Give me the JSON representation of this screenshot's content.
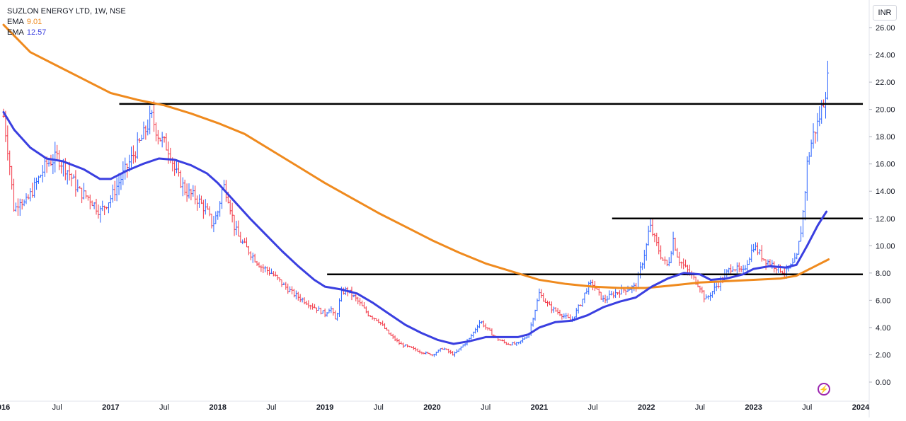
{
  "legend": {
    "symbol": "SUZLON ENERGY LTD, 1W, NSE",
    "ema_long_label": "EMA",
    "ema_long_value": "9.01",
    "ema_short_label": "EMA",
    "ema_short_value": "12.57"
  },
  "currency": "INR",
  "flash_icon_glyph": "⚡",
  "chart_data": {
    "type": "line",
    "title": "SUZLON ENERGY LTD, 1W, NSE",
    "ylim": [
      -0.6,
      26.4
    ],
    "xlim": [
      2016.0,
      2024.1
    ],
    "y_ticks": [
      "26.00",
      "24.00",
      "22.00",
      "20.00",
      "18.00",
      "16.00",
      "14.00",
      "12.00",
      "10.00",
      "8.00",
      "6.00",
      "4.00",
      "2.00",
      "0.00"
    ],
    "x_ticks": [
      {
        "t": 2016.0,
        "label": "016"
      },
      {
        "t": 2016.5,
        "label": "Jul"
      },
      {
        "t": 2017.0,
        "label": "2017"
      },
      {
        "t": 2017.5,
        "label": "Jul"
      },
      {
        "t": 2018.0,
        "label": "2018"
      },
      {
        "t": 2018.5,
        "label": "Jul"
      },
      {
        "t": 2019.0,
        "label": "2019"
      },
      {
        "t": 2019.5,
        "label": "Jul"
      },
      {
        "t": 2020.0,
        "label": "2020"
      },
      {
        "t": 2020.5,
        "label": "Jul"
      },
      {
        "t": 2021.0,
        "label": "2021"
      },
      {
        "t": 2021.5,
        "label": "Jul"
      },
      {
        "t": 2022.0,
        "label": "2022"
      },
      {
        "t": 2022.5,
        "label": "Jul"
      },
      {
        "t": 2023.0,
        "label": "2023"
      },
      {
        "t": 2023.5,
        "label": "Jul"
      },
      {
        "t": 2024.0,
        "label": "2024"
      }
    ],
    "price_path": [
      [
        2016.0,
        19.5
      ],
      [
        2016.05,
        16.5
      ],
      [
        2016.1,
        12.5
      ],
      [
        2016.15,
        13.5
      ],
      [
        2016.2,
        13.0
      ],
      [
        2016.3,
        14.5
      ],
      [
        2016.4,
        16.0
      ],
      [
        2016.5,
        16.5
      ],
      [
        2016.6,
        15.5
      ],
      [
        2016.7,
        14.0
      ],
      [
        2016.8,
        13.5
      ],
      [
        2016.9,
        12.5
      ],
      [
        2017.0,
        13.5
      ],
      [
        2017.1,
        15.0
      ],
      [
        2017.2,
        16.5
      ],
      [
        2017.3,
        18.0
      ],
      [
        2017.38,
        19.5
      ],
      [
        2017.45,
        18.0
      ],
      [
        2017.55,
        17.0
      ],
      [
        2017.6,
        15.5
      ],
      [
        2017.7,
        14.0
      ],
      [
        2017.8,
        13.5
      ],
      [
        2017.9,
        12.5
      ],
      [
        2017.95,
        11.5
      ],
      [
        2018.0,
        12.5
      ],
      [
        2018.05,
        14.5
      ],
      [
        2018.1,
        13.5
      ],
      [
        2018.15,
        11.5
      ],
      [
        2018.2,
        10.5
      ],
      [
        2018.3,
        9.5
      ],
      [
        2018.4,
        8.5
      ],
      [
        2018.5,
        8.0
      ],
      [
        2018.6,
        7.2
      ],
      [
        2018.7,
        6.5
      ],
      [
        2018.8,
        6.0
      ],
      [
        2018.9,
        5.5
      ],
      [
        2019.0,
        5.0
      ],
      [
        2019.05,
        5.5
      ],
      [
        2019.1,
        4.5
      ],
      [
        2019.15,
        6.5
      ],
      [
        2019.2,
        6.8
      ],
      [
        2019.3,
        6.0
      ],
      [
        2019.4,
        5.0
      ],
      [
        2019.5,
        4.5
      ],
      [
        2019.6,
        3.5
      ],
      [
        2019.7,
        2.8
      ],
      [
        2019.8,
        2.5
      ],
      [
        2019.9,
        2.2
      ],
      [
        2020.0,
        2.0
      ],
      [
        2020.1,
        2.5
      ],
      [
        2020.2,
        2.0
      ],
      [
        2020.3,
        2.8
      ],
      [
        2020.35,
        3.2
      ],
      [
        2020.45,
        4.5
      ],
      [
        2020.5,
        4.0
      ],
      [
        2020.6,
        3.2
      ],
      [
        2020.7,
        2.8
      ],
      [
        2020.8,
        2.8
      ],
      [
        2020.9,
        3.5
      ],
      [
        2021.0,
        6.5
      ],
      [
        2021.05,
        6.0
      ],
      [
        2021.1,
        5.5
      ],
      [
        2021.2,
        5.0
      ],
      [
        2021.3,
        4.5
      ],
      [
        2021.4,
        6.0
      ],
      [
        2021.45,
        7.0
      ],
      [
        2021.5,
        7.2
      ],
      [
        2021.55,
        6.5
      ],
      [
        2021.6,
        6.0
      ],
      [
        2021.7,
        6.5
      ],
      [
        2021.8,
        6.8
      ],
      [
        2021.9,
        7.0
      ],
      [
        2022.0,
        10.0
      ],
      [
        2022.03,
        11.5
      ],
      [
        2022.1,
        10.0
      ],
      [
        2022.15,
        9.0
      ],
      [
        2022.2,
        8.5
      ],
      [
        2022.25,
        10.5
      ],
      [
        2022.3,
        9.0
      ],
      [
        2022.4,
        8.0
      ],
      [
        2022.5,
        7.0
      ],
      [
        2022.55,
        6.0
      ],
      [
        2022.6,
        6.5
      ],
      [
        2022.7,
        7.5
      ],
      [
        2022.8,
        8.5
      ],
      [
        2022.9,
        8.0
      ],
      [
        2023.0,
        10.0
      ],
      [
        2023.05,
        9.5
      ],
      [
        2023.1,
        9.0
      ],
      [
        2023.2,
        8.5
      ],
      [
        2023.3,
        8.0
      ],
      [
        2023.35,
        8.5
      ],
      [
        2023.4,
        9.0
      ],
      [
        2023.45,
        11.5
      ],
      [
        2023.48,
        14.0
      ],
      [
        2023.5,
        16.0
      ],
      [
        2023.55,
        18.0
      ],
      [
        2023.6,
        19.0
      ],
      [
        2023.65,
        20.5
      ],
      [
        2023.7,
        22.5
      ]
    ],
    "series": [
      {
        "name": "EMA 9.01",
        "color": "#ef8a1e",
        "points": [
          [
            2016.0,
            26.2
          ],
          [
            2016.25,
            24.2
          ],
          [
            2016.5,
            23.2
          ],
          [
            2016.75,
            22.2
          ],
          [
            2017.0,
            21.2
          ],
          [
            2017.25,
            20.7
          ],
          [
            2017.5,
            20.3
          ],
          [
            2017.75,
            19.7
          ],
          [
            2018.0,
            19.0
          ],
          [
            2018.25,
            18.2
          ],
          [
            2018.5,
            17.0
          ],
          [
            2018.75,
            15.8
          ],
          [
            2019.0,
            14.6
          ],
          [
            2019.25,
            13.5
          ],
          [
            2019.5,
            12.4
          ],
          [
            2019.75,
            11.4
          ],
          [
            2020.0,
            10.4
          ],
          [
            2020.25,
            9.5
          ],
          [
            2020.5,
            8.7
          ],
          [
            2020.75,
            8.1
          ],
          [
            2021.0,
            7.5
          ],
          [
            2021.25,
            7.2
          ],
          [
            2021.5,
            7.0
          ],
          [
            2021.75,
            6.9
          ],
          [
            2022.0,
            6.9
          ],
          [
            2022.25,
            7.1
          ],
          [
            2022.5,
            7.3
          ],
          [
            2022.75,
            7.4
          ],
          [
            2023.0,
            7.5
          ],
          [
            2023.25,
            7.6
          ],
          [
            2023.4,
            7.8
          ],
          [
            2023.5,
            8.2
          ],
          [
            2023.6,
            8.6
          ],
          [
            2023.7,
            9.0
          ]
        ]
      },
      {
        "name": "EMA 12.57",
        "color": "#3a3fe0",
        "points": [
          [
            2016.0,
            19.8
          ],
          [
            2016.1,
            18.5
          ],
          [
            2016.25,
            17.2
          ],
          [
            2016.4,
            16.4
          ],
          [
            2016.55,
            16.2
          ],
          [
            2016.75,
            15.6
          ],
          [
            2016.9,
            14.9
          ],
          [
            2017.0,
            14.9
          ],
          [
            2017.15,
            15.5
          ],
          [
            2017.3,
            16.0
          ],
          [
            2017.45,
            16.4
          ],
          [
            2017.6,
            16.3
          ],
          [
            2017.75,
            15.9
          ],
          [
            2017.9,
            15.3
          ],
          [
            2018.0,
            14.6
          ],
          [
            2018.15,
            13.3
          ],
          [
            2018.3,
            12.0
          ],
          [
            2018.45,
            10.8
          ],
          [
            2018.6,
            9.6
          ],
          [
            2018.75,
            8.5
          ],
          [
            2018.9,
            7.5
          ],
          [
            2019.0,
            7.0
          ],
          [
            2019.15,
            6.8
          ],
          [
            2019.3,
            6.5
          ],
          [
            2019.45,
            5.8
          ],
          [
            2019.6,
            5.0
          ],
          [
            2019.75,
            4.2
          ],
          [
            2019.9,
            3.6
          ],
          [
            2020.05,
            3.1
          ],
          [
            2020.2,
            2.8
          ],
          [
            2020.35,
            3.0
          ],
          [
            2020.5,
            3.3
          ],
          [
            2020.65,
            3.3
          ],
          [
            2020.8,
            3.3
          ],
          [
            2020.9,
            3.5
          ],
          [
            2021.0,
            4.0
          ],
          [
            2021.15,
            4.4
          ],
          [
            2021.3,
            4.5
          ],
          [
            2021.45,
            4.9
          ],
          [
            2021.6,
            5.5
          ],
          [
            2021.75,
            5.9
          ],
          [
            2021.9,
            6.2
          ],
          [
            2022.05,
            7.0
          ],
          [
            2022.2,
            7.6
          ],
          [
            2022.35,
            8.0
          ],
          [
            2022.5,
            7.9
          ],
          [
            2022.6,
            7.5
          ],
          [
            2022.75,
            7.6
          ],
          [
            2022.9,
            7.9
          ],
          [
            2023.0,
            8.3
          ],
          [
            2023.15,
            8.5
          ],
          [
            2023.3,
            8.4
          ],
          [
            2023.4,
            8.6
          ],
          [
            2023.5,
            10.0
          ],
          [
            2023.6,
            11.5
          ],
          [
            2023.68,
            12.5
          ]
        ]
      }
    ],
    "horizontal_levels": [
      {
        "y": 20.4,
        "from": 2017.08,
        "to": 2024.02
      },
      {
        "y": 12.0,
        "from": 2021.68,
        "to": 2024.02
      },
      {
        "y": 7.9,
        "from": 2019.02,
        "to": 2024.02
      }
    ]
  }
}
